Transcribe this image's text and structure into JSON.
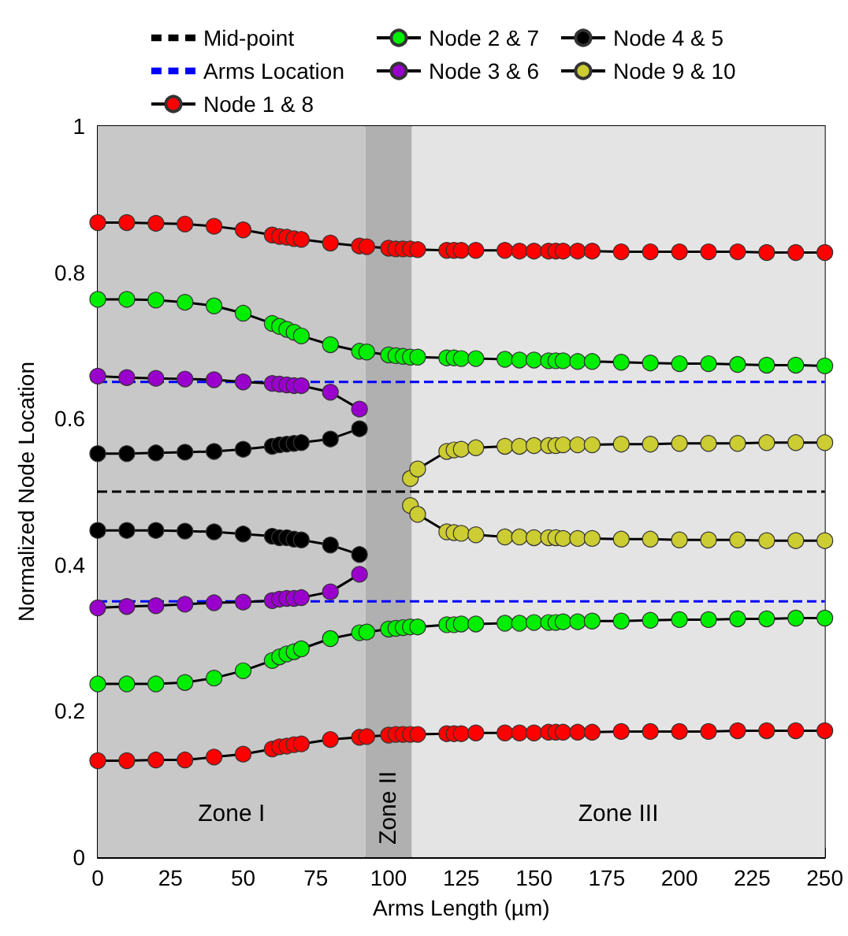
{
  "chart_data": {
    "type": "line",
    "xlabel": "Arms Length (µm)",
    "ylabel": "Normalized Node Location",
    "xlim": [
      0,
      250
    ],
    "xticks": [
      0,
      25,
      50,
      75,
      100,
      125,
      150,
      175,
      200,
      225,
      250
    ],
    "ylim": [
      0,
      1
    ],
    "yticks": [
      0,
      0.2,
      0.4,
      0.6,
      0.8,
      1
    ],
    "grid": false,
    "legend": "top",
    "marker": "circle",
    "line_style": "solid",
    "bands": [
      {
        "axis": "x",
        "from": 0,
        "to": 92,
        "label": "Zone I",
        "color": "#c8c8c8"
      },
      {
        "axis": "x",
        "from": 92,
        "to": 108,
        "label": "Zone II",
        "color": "#b0b0b0"
      },
      {
        "axis": "x",
        "from": 108,
        "to": 250,
        "label": "Zone III",
        "color": "#e4e4e4"
      }
    ],
    "ref_lines": [
      {
        "axis": "y",
        "value": 0.5,
        "label": "Mid-point",
        "color": "#000000",
        "line_style": "dashed"
      },
      {
        "axis": "y",
        "value": 0.35,
        "label": "Arms Location",
        "color": "#0000ff",
        "line_style": "dashed"
      },
      {
        "axis": "y",
        "value": 0.65,
        "color": "#0000ff",
        "line_style": "dashed"
      }
    ],
    "series": [
      {
        "name": "Node 1 & 8",
        "color": "#ff0000",
        "x": [
          0,
          10,
          20,
          30,
          40,
          50,
          60,
          62.5,
          65,
          67.5,
          70,
          80,
          90,
          92.5,
          100,
          102.5,
          105,
          107.5,
          110,
          120,
          122.5,
          125,
          130,
          140,
          145,
          150,
          155,
          157.5,
          160,
          165,
          170,
          180,
          190,
          200,
          210,
          220,
          230,
          240,
          250
        ],
        "values": [
          0.868,
          0.868,
          0.867,
          0.866,
          0.863,
          0.858,
          0.851,
          0.849,
          0.848,
          0.846,
          0.845,
          0.84,
          0.836,
          0.835,
          0.833,
          0.832,
          0.832,
          0.832,
          0.831,
          0.83,
          0.83,
          0.83,
          0.83,
          0.83,
          0.829,
          0.829,
          0.829,
          0.829,
          0.829,
          0.829,
          0.829,
          0.828,
          0.828,
          0.828,
          0.828,
          0.828,
          0.827,
          0.827,
          0.827
        ]
      },
      {
        "color": "#ff0000",
        "x": [
          0,
          10,
          20,
          30,
          40,
          50,
          60,
          62.5,
          65,
          67.5,
          70,
          80,
          90,
          92.5,
          100,
          102.5,
          105,
          107.5,
          110,
          120,
          122.5,
          125,
          130,
          140,
          145,
          150,
          155,
          157.5,
          160,
          165,
          170,
          180,
          190,
          200,
          210,
          220,
          230,
          240,
          250
        ],
        "values": [
          0.132,
          0.132,
          0.133,
          0.133,
          0.137,
          0.141,
          0.148,
          0.151,
          0.152,
          0.154,
          0.155,
          0.161,
          0.164,
          0.165,
          0.167,
          0.168,
          0.168,
          0.168,
          0.168,
          0.169,
          0.169,
          0.169,
          0.17,
          0.17,
          0.17,
          0.17,
          0.171,
          0.171,
          0.171,
          0.171,
          0.171,
          0.172,
          0.172,
          0.172,
          0.172,
          0.173,
          0.173,
          0.173,
          0.173
        ]
      },
      {
        "name": "Node 2 & 7",
        "color": "#00ee00",
        "x": [
          0,
          10,
          20,
          30,
          40,
          50,
          60,
          62.5,
          65,
          67.5,
          70,
          80,
          90,
          92.5,
          100,
          102.5,
          105,
          107.5,
          110,
          120,
          122.5,
          125,
          130,
          140,
          145,
          150,
          155,
          157.5,
          160,
          165,
          170,
          180,
          190,
          200,
          210,
          220,
          230,
          240,
          250
        ],
        "values": [
          0.763,
          0.763,
          0.762,
          0.759,
          0.754,
          0.744,
          0.73,
          0.726,
          0.722,
          0.718,
          0.713,
          0.701,
          0.692,
          0.691,
          0.687,
          0.686,
          0.685,
          0.684,
          0.684,
          0.683,
          0.683,
          0.682,
          0.682,
          0.681,
          0.68,
          0.68,
          0.679,
          0.679,
          0.679,
          0.678,
          0.678,
          0.677,
          0.676,
          0.675,
          0.675,
          0.674,
          0.673,
          0.673,
          0.672
        ]
      },
      {
        "color": "#00ee00",
        "x": [
          0,
          10,
          20,
          30,
          40,
          50,
          60,
          62.5,
          65,
          67.5,
          70,
          80,
          90,
          92.5,
          100,
          102.5,
          105,
          107.5,
          110,
          120,
          122.5,
          125,
          130,
          140,
          145,
          150,
          155,
          157.5,
          160,
          165,
          170,
          180,
          190,
          200,
          210,
          220,
          230,
          240,
          250
        ],
        "values": [
          0.237,
          0.237,
          0.237,
          0.239,
          0.245,
          0.255,
          0.269,
          0.274,
          0.278,
          0.281,
          0.285,
          0.299,
          0.307,
          0.308,
          0.312,
          0.313,
          0.314,
          0.315,
          0.315,
          0.318,
          0.318,
          0.319,
          0.319,
          0.32,
          0.32,
          0.321,
          0.321,
          0.321,
          0.322,
          0.322,
          0.323,
          0.323,
          0.324,
          0.325,
          0.325,
          0.326,
          0.326,
          0.327,
          0.327
        ]
      },
      {
        "name": "Node 3 & 6",
        "color": "#9900cc",
        "x": [
          0,
          10,
          20,
          30,
          40,
          50,
          60,
          62.5,
          65,
          67.5,
          70,
          80,
          90
        ],
        "values": [
          0.658,
          0.656,
          0.655,
          0.654,
          0.653,
          0.65,
          0.648,
          0.647,
          0.646,
          0.645,
          0.645,
          0.636,
          0.613
        ]
      },
      {
        "color": "#9900cc",
        "x": [
          0,
          10,
          20,
          30,
          40,
          50,
          60,
          62.5,
          65,
          67.5,
          70,
          80,
          90
        ],
        "values": [
          0.341,
          0.343,
          0.344,
          0.346,
          0.348,
          0.349,
          0.351,
          0.353,
          0.354,
          0.354,
          0.355,
          0.363,
          0.387
        ]
      },
      {
        "name": "Node 4 & 5",
        "color": "#000000",
        "x": [
          0,
          10,
          20,
          30,
          40,
          50,
          60,
          62.5,
          65,
          67.5,
          70,
          80,
          90
        ],
        "values": [
          0.552,
          0.552,
          0.553,
          0.554,
          0.555,
          0.558,
          0.562,
          0.564,
          0.565,
          0.566,
          0.567,
          0.572,
          0.586
        ]
      },
      {
        "color": "#000000",
        "x": [
          0,
          10,
          20,
          30,
          40,
          50,
          60,
          62.5,
          65,
          67.5,
          70,
          80,
          90
        ],
        "values": [
          0.447,
          0.447,
          0.447,
          0.446,
          0.445,
          0.442,
          0.439,
          0.437,
          0.437,
          0.435,
          0.434,
          0.427,
          0.414
        ]
      },
      {
        "name": "Node 9 & 10",
        "color": "#cccc33",
        "x": [
          107.5,
          110,
          120,
          122.5,
          125,
          130,
          140,
          145,
          150,
          155,
          157.5,
          160,
          165,
          170,
          180,
          190,
          200,
          210,
          220,
          230,
          240,
          250
        ],
        "values": [
          0.518,
          0.531,
          0.555,
          0.557,
          0.558,
          0.56,
          0.562,
          0.562,
          0.563,
          0.563,
          0.563,
          0.564,
          0.564,
          0.564,
          0.565,
          0.565,
          0.566,
          0.566,
          0.566,
          0.567,
          0.567,
          0.567
        ]
      },
      {
        "color": "#cccc33",
        "x": [
          107.5,
          110,
          120,
          122.5,
          125,
          130,
          140,
          145,
          150,
          155,
          157.5,
          160,
          165,
          170,
          180,
          190,
          200,
          210,
          220,
          230,
          240,
          250
        ],
        "values": [
          0.481,
          0.469,
          0.445,
          0.444,
          0.443,
          0.441,
          0.438,
          0.438,
          0.437,
          0.437,
          0.437,
          0.436,
          0.436,
          0.436,
          0.435,
          0.435,
          0.434,
          0.434,
          0.434,
          0.433,
          0.433,
          0.433
        ]
      }
    ]
  }
}
